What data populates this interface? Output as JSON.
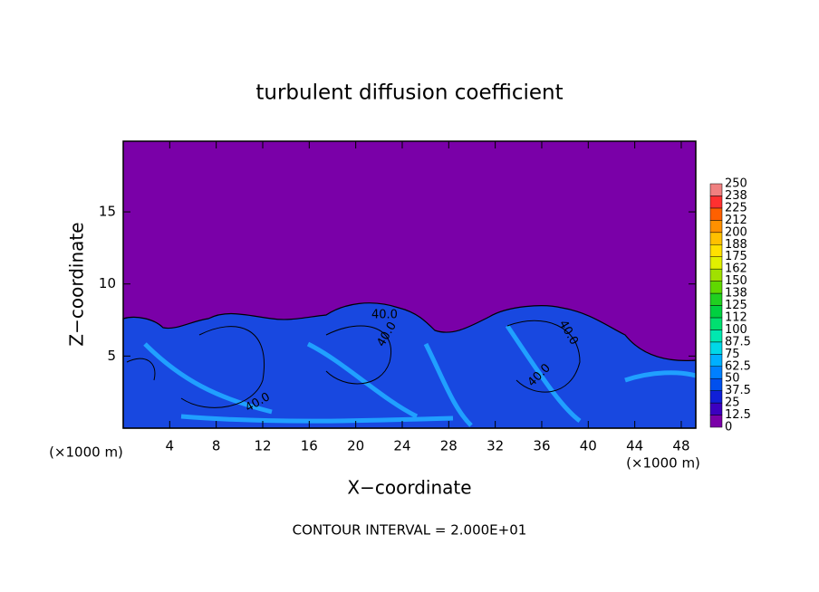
{
  "chart_data": {
    "type": "contour",
    "title": "turbulent diffusion coefficient",
    "x_label": "X−coordinate",
    "y_label": "Z−coordinate",
    "x_unit": "(×1000 m)",
    "x_unit_right": "(×1000 m)",
    "xlim": [
      0,
      49.25
    ],
    "xticks": [
      4,
      8,
      12,
      16,
      20,
      24,
      28,
      32,
      36,
      40,
      44,
      48
    ],
    "ylim": [
      0,
      19.9
    ],
    "yticks": [
      5,
      10,
      15
    ],
    "colorbar": {
      "ticks": [
        0,
        12.5,
        25,
        37.5,
        50,
        62.5,
        75,
        87.5,
        100,
        112,
        125,
        138,
        150,
        162,
        175,
        188,
        200,
        212,
        225,
        238,
        250
      ],
      "colors": [
        "#7a00a8",
        "#3c00c0",
        "#1020d8",
        "#0050ee",
        "#0080ff",
        "#00b0ff",
        "#00d8e8",
        "#00e8b0",
        "#00e070",
        "#00d040",
        "#20d020",
        "#60d800",
        "#a0e000",
        "#e0f000",
        "#ffe000",
        "#ffc000",
        "#ff9000",
        "#ff6000",
        "#ff3030",
        "#f08080"
      ]
    },
    "contour_labels": [
      "40.0",
      "40.0",
      "40.0",
      "40.0",
      "40.0"
    ],
    "footer": "CONTOUR INTERVAL = 2.000E+01"
  }
}
